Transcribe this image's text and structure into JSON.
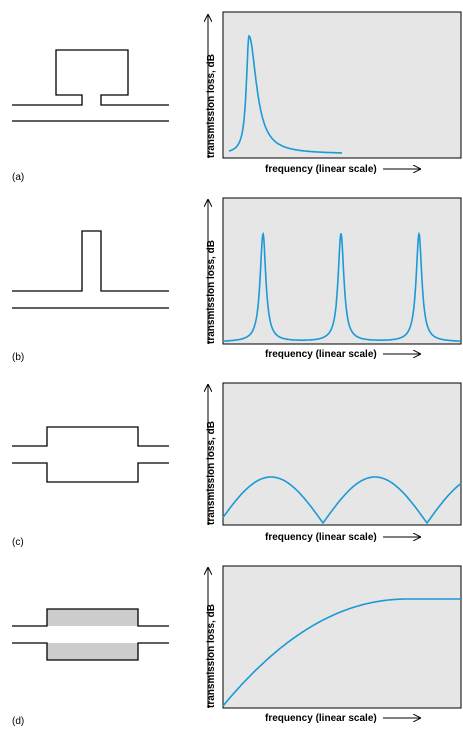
{
  "colors": {
    "curve": "#1a9ad6",
    "plot_background": "#e6e6e6",
    "liner_fill": "#cccccc"
  },
  "panels": [
    {
      "id": "a",
      "label": "(a)",
      "muffler_type": "side-branch volume resonator"
    },
    {
      "id": "b",
      "label": "(b)",
      "muffler_type": "quarter-wave side-branch tube"
    },
    {
      "id": "c",
      "label": "(c)",
      "muffler_type": "expansion chamber"
    },
    {
      "id": "d",
      "label": "(d)",
      "muffler_type": "lined expansion chamber"
    }
  ],
  "axis_labels": {
    "x": "frequency (linear scale)",
    "y": "transmission loss, dB"
  },
  "chart_data": [
    {
      "type": "line",
      "title": "",
      "xlabel": "frequency (linear scale)",
      "ylabel": "transmission loss, dB",
      "series": [
        {
          "name": "",
          "shape": "single resonance peak near low frequency, decays to zero"
        }
      ]
    },
    {
      "type": "line",
      "title": "",
      "xlabel": "frequency (linear scale)",
      "ylabel": "transmission loss, dB",
      "series": [
        {
          "name": "",
          "shape": "three periodic sharp resonance peaks"
        }
      ]
    },
    {
      "type": "line",
      "title": "",
      "xlabel": "frequency (linear scale)",
      "ylabel": "transmission loss, dB",
      "series": [
        {
          "name": "",
          "shape": "periodic arches with zeros between"
        }
      ]
    },
    {
      "type": "line",
      "title": "",
      "xlabel": "frequency (linear scale)",
      "ylabel": "transmission loss, dB",
      "series": [
        {
          "name": "",
          "shape": "monotonic rise then plateau"
        }
      ]
    }
  ]
}
